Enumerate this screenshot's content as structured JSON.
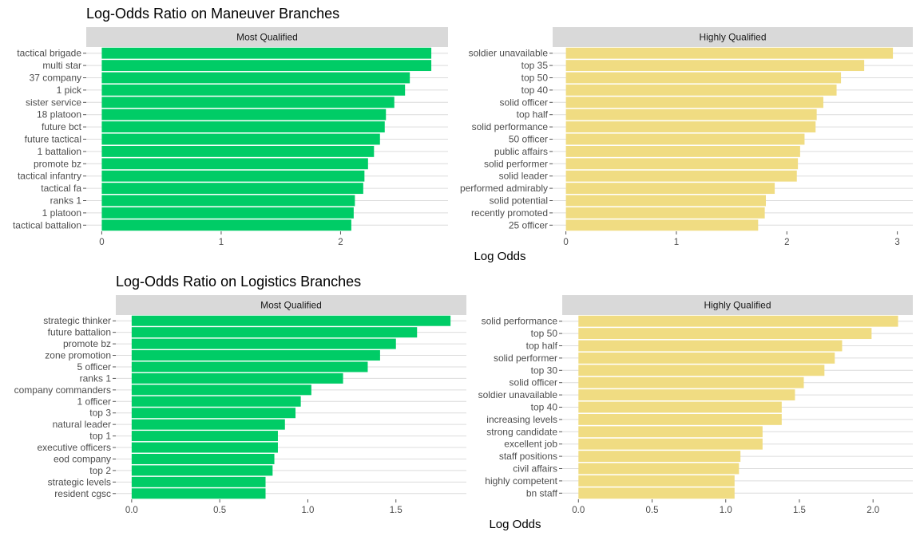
{
  "chart_data": [
    {
      "type": "bar",
      "title": "Log-Odds Ratio on Maneuver Branches",
      "panel": "Most Qualified",
      "color": "#00cc66",
      "categories": [
        "tactical brigade",
        "multi star",
        "37 company",
        "1 pick",
        "sister service",
        "18 platoon",
        "future bct",
        "future tactical",
        "1 battalion",
        "promote bz",
        "tactical infantry",
        "tactical fa",
        "ranks 1",
        "1 platoon",
        "tactical battalion"
      ],
      "values": [
        2.76,
        2.76,
        2.58,
        2.54,
        2.45,
        2.38,
        2.37,
        2.33,
        2.28,
        2.23,
        2.2,
        2.19,
        2.12,
        2.11,
        2.09
      ],
      "xticks": [
        0,
        1,
        2
      ],
      "xlim": [
        -0.13,
        2.9
      ]
    },
    {
      "type": "bar",
      "panel": "Highly Qualified",
      "color": "#f0dc82",
      "categories": [
        "soldier unavailable",
        "top 35",
        "top 50",
        "top 40",
        "solid officer",
        "top half",
        "solid performance",
        "50 officer",
        "public affairs",
        "solid performer",
        "solid leader",
        "performed admirably",
        "solid potential",
        "recently promoted",
        "25 officer"
      ],
      "values": [
        2.96,
        2.7,
        2.49,
        2.45,
        2.33,
        2.27,
        2.26,
        2.16,
        2.12,
        2.1,
        2.09,
        1.89,
        1.81,
        1.8,
        1.74
      ],
      "xticks": [
        0,
        1,
        2,
        3
      ],
      "xlabel": "Log Odds",
      "xlim": [
        -0.12,
        3.14
      ]
    },
    {
      "type": "bar",
      "title": "Log-Odds Ratio on Logistics Branches",
      "panel": "Most Qualified",
      "color": "#00cc66",
      "categories": [
        "strategic thinker",
        "future battalion",
        "promote bz",
        "zone promotion",
        "5 officer",
        "ranks 1",
        "company commanders",
        "1 officer",
        "top 3",
        "natural leader",
        "top 1",
        "executive officers",
        "eod company",
        "top 2",
        "strategic levels",
        "resident cgsc"
      ],
      "values": [
        1.81,
        1.62,
        1.5,
        1.41,
        1.34,
        1.2,
        1.02,
        0.96,
        0.93,
        0.87,
        0.83,
        0.83,
        0.81,
        0.8,
        0.76,
        0.76
      ],
      "xticks": [
        0.0,
        0.5,
        1.0,
        1.5
      ],
      "xticklabels": [
        "0.0",
        "0.5",
        "1.0",
        "1.5"
      ],
      "xlim": [
        -0.09,
        1.9
      ]
    },
    {
      "type": "bar",
      "panel": "Highly Qualified",
      "color": "#f0dc82",
      "categories": [
        "solid performance",
        "top 50",
        "top half",
        "solid performer",
        "top 30",
        "solid officer",
        "soldier unavailable",
        "top 40",
        "increasing levels",
        "strong candidate",
        "excellent job",
        "staff positions",
        "civil affairs",
        "highly competent",
        "bn staff"
      ],
      "values": [
        2.17,
        1.99,
        1.79,
        1.74,
        1.67,
        1.53,
        1.47,
        1.38,
        1.38,
        1.25,
        1.25,
        1.1,
        1.09,
        1.06,
        1.06
      ],
      "xticks": [
        0.0,
        0.5,
        1.0,
        1.5,
        2.0
      ],
      "xticklabels": [
        "0.0",
        "0.5",
        "1.0",
        "1.5",
        "2.0"
      ],
      "xlabel": "Log Odds",
      "xlim": [
        -0.11,
        2.27
      ]
    }
  ]
}
